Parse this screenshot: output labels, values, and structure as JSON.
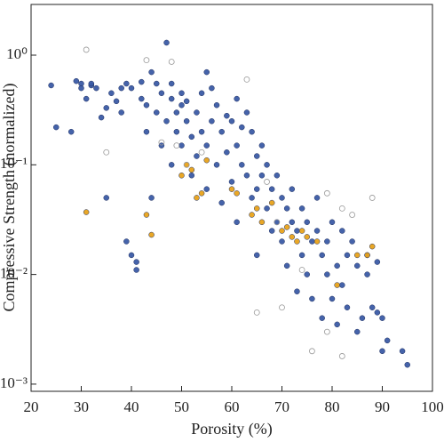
{
  "chart_data": {
    "type": "scatter",
    "xlabel": "Porosity (%)",
    "ylabel": "Compressive Strength (normalized)",
    "yscale": "log",
    "xlim": [
      20,
      100
    ],
    "ylim": [
      0.00086,
      2.9
    ],
    "xticks": [
      20,
      30,
      40,
      50,
      60,
      70,
      80,
      90,
      100
    ],
    "yticks": [
      {
        "value": 0.001,
        "label": "10⁻³"
      },
      {
        "value": 0.01,
        "label": "10⁻²"
      },
      {
        "value": 0.1,
        "label": "10⁻¹"
      },
      {
        "value": 1,
        "label": "10⁰"
      }
    ],
    "series": [
      {
        "color": "#3b5ba5",
        "filled": true,
        "x": [
          24,
          25,
          28,
          29,
          30,
          30,
          31,
          32,
          32,
          33,
          34,
          35,
          35,
          36,
          37,
          38,
          38,
          39,
          39,
          40,
          40,
          41,
          41,
          42,
          42,
          43,
          43,
          44,
          44,
          45,
          45,
          46,
          46,
          47,
          47,
          48,
          48,
          48,
          49,
          49,
          50,
          50,
          50,
          51,
          51,
          52,
          52,
          53,
          53,
          54,
          54,
          55,
          55,
          55,
          56,
          56,
          57,
          57,
          58,
          58,
          59,
          59,
          60,
          60,
          61,
          61,
          61,
          62,
          62,
          63,
          63,
          64,
          64,
          65,
          65,
          65,
          66,
          66,
          67,
          67,
          68,
          68,
          69,
          69,
          70,
          70,
          71,
          71,
          72,
          72,
          73,
          73,
          74,
          74,
          75,
          75,
          76,
          76,
          77,
          77,
          78,
          78,
          79,
          79,
          80,
          80,
          81,
          81,
          82,
          82,
          83,
          83,
          84,
          85,
          85,
          86,
          87,
          87,
          88,
          89,
          89,
          90,
          90,
          91,
          94,
          95
        ],
        "values": [
          0.53,
          0.22,
          0.2,
          0.58,
          0.55,
          0.5,
          0.4,
          0.53,
          0.55,
          0.5,
          0.27,
          0.05,
          0.33,
          0.45,
          0.38,
          0.5,
          0.3,
          0.55,
          0.02,
          0.015,
          0.5,
          0.013,
          0.011,
          0.57,
          0.4,
          0.35,
          0.2,
          0.05,
          0.7,
          0.55,
          0.3,
          0.45,
          0.15,
          1.3,
          0.25,
          0.4,
          0.55,
          0.1,
          0.3,
          0.2,
          0.45,
          0.35,
          0.15,
          0.38,
          0.25,
          0.18,
          0.08,
          0.3,
          0.12,
          0.45,
          0.2,
          0.7,
          0.15,
          0.06,
          0.5,
          0.25,
          0.35,
          0.1,
          0.2,
          0.045,
          0.28,
          0.13,
          0.25,
          0.07,
          0.4,
          0.15,
          0.03,
          0.22,
          0.1,
          0.3,
          0.08,
          0.2,
          0.05,
          0.12,
          0.06,
          0.015,
          0.15,
          0.08,
          0.1,
          0.04,
          0.06,
          0.025,
          0.08,
          0.03,
          0.05,
          0.02,
          0.04,
          0.012,
          0.06,
          0.03,
          0.025,
          0.007,
          0.04,
          0.015,
          0.03,
          0.01,
          0.02,
          0.006,
          0.05,
          0.025,
          0.015,
          0.004,
          0.02,
          0.01,
          0.03,
          0.006,
          0.012,
          0.0035,
          0.025,
          0.008,
          0.015,
          0.005,
          0.02,
          0.003,
          0.012,
          0.004,
          0.01,
          0.015,
          0.005,
          0.0045,
          0.013,
          0.002,
          0.004,
          0.0025,
          0.002,
          0.0015
        ]
      },
      {
        "color": "#e8a21a",
        "filled": true,
        "x": [
          31,
          43,
          44,
          50,
          51,
          52,
          53,
          54,
          55,
          60,
          61,
          64,
          65,
          66,
          68,
          70,
          71,
          72,
          73,
          74,
          75,
          77,
          81,
          85,
          87,
          88
        ],
        "values": [
          0.037,
          0.035,
          0.023,
          0.08,
          0.1,
          0.09,
          0.05,
          0.055,
          0.11,
          0.06,
          0.055,
          0.035,
          0.04,
          0.03,
          0.045,
          0.025,
          0.027,
          0.022,
          0.02,
          0.025,
          0.022,
          0.02,
          0.008,
          0.015,
          0.015,
          0.018
        ]
      },
      {
        "color": "#999999",
        "filled": false,
        "x": [
          31,
          35,
          43,
          46,
          48,
          49,
          51,
          54,
          63,
          65,
          67,
          69,
          70,
          74,
          76,
          79,
          79,
          82,
          82,
          84,
          88
        ],
        "values": [
          1.12,
          0.13,
          0.9,
          0.16,
          0.87,
          0.15,
          0.1,
          0.13,
          0.6,
          0.0045,
          0.07,
          0.03,
          0.005,
          0.011,
          0.002,
          0.055,
          0.003,
          0.0018,
          0.04,
          0.035,
          0.05
        ]
      }
    ]
  }
}
